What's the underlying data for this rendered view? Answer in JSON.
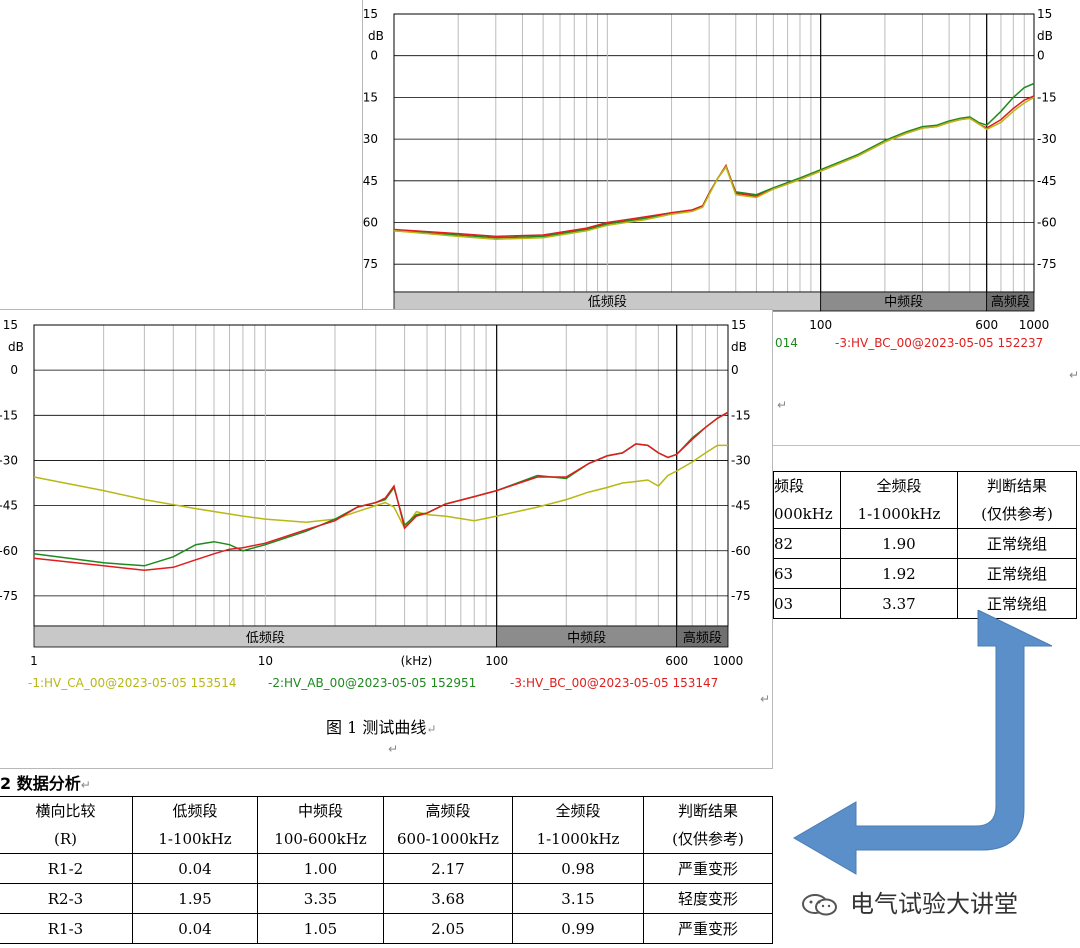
{
  "colors": {
    "yellow": "#b8b814",
    "green": "#1e8a1e",
    "red": "#e01e1e",
    "grid": "#bcbcbc",
    "band_low": "#c8c8c8",
    "band_mid": "#8c8c8c",
    "band_high": "#707070",
    "arrow": "#5b8fc9"
  },
  "back_chart": {
    "y_ticks": [
      "15",
      "0",
      "-15",
      "-30",
      "-45",
      "-60",
      "-75"
    ],
    "y_unit": "dB",
    "bands": [
      "低频段",
      "中频段",
      "高频段"
    ],
    "x_ticks": [
      "100",
      "600",
      "1000"
    ],
    "legend_partial": "014",
    "legend_series3": "-3:HV_BC_00@2023-05-05 152237"
  },
  "front_chart": {
    "y_ticks": [
      "15",
      "0",
      "-15",
      "-30",
      "-45",
      "-60",
      "-75"
    ],
    "y_unit": "dB",
    "bands": [
      "低频段",
      "中频段",
      "高频段"
    ],
    "x_ticks": [
      "1",
      "10",
      "(kHz)",
      "100",
      "600",
      "1000"
    ],
    "legend": [
      "-1:HV_CA_00@2023-05-05 153514",
      "-2:HV_AB_00@2023-05-05 152951",
      "-3:HV_BC_00@2023-05-05 153147"
    ],
    "caption": "图 1   测试曲线"
  },
  "chart_data": [
    {
      "type": "line",
      "x_scale": "log",
      "xlim": [
        1,
        1000
      ],
      "ylim": [
        -85,
        15
      ],
      "yticks": [
        15,
        0,
        -15,
        -30,
        -45,
        -60,
        -75
      ],
      "ylabel": "dB",
      "bands": [
        {
          "label": "低频段",
          "from": 1,
          "to": 100
        },
        {
          "label": "中频段",
          "from": 100,
          "to": 600
        },
        {
          "label": "高频段",
          "from": 600,
          "to": 1000
        }
      ],
      "series": [
        {
          "name": "-1:HV_CA_00@2023-05-05 153514",
          "color": "#b8b814",
          "x": [
            1,
            2,
            3,
            5,
            8,
            10,
            15,
            20,
            25,
            28,
            30,
            33,
            36,
            40,
            50,
            60,
            80,
            100,
            150,
            200,
            250,
            300,
            350,
            400,
            450,
            500,
            550,
            600,
            700,
            800,
            900,
            1000
          ],
          "y": [
            -63,
            -65,
            -66,
            -65.5,
            -63,
            -61,
            -59,
            -57,
            -56,
            -54.5,
            -50,
            -44,
            -40,
            -50,
            -51,
            -48,
            -44.5,
            -41.5,
            -36,
            -31,
            -28,
            -26,
            -25.5,
            -24,
            -23,
            -22.5,
            -24.5,
            -26.5,
            -24,
            -20,
            -17,
            -15
          ]
        },
        {
          "name": "-2:HV_AB_00@2023-05-05 152951",
          "color": "#1e8a1e",
          "x": [
            1,
            2,
            3,
            5,
            8,
            10,
            15,
            20,
            25,
            28,
            30,
            33,
            36,
            40,
            50,
            60,
            80,
            100,
            150,
            200,
            250,
            300,
            350,
            400,
            450,
            500,
            550,
            600,
            700,
            800,
            900,
            1000
          ],
          "y": [
            -63,
            -64.5,
            -65.5,
            -65,
            -62.5,
            -60.5,
            -58.5,
            -56.5,
            -55.5,
            -54,
            -49.5,
            -44,
            -40,
            -49,
            -50,
            -47.5,
            -44,
            -41,
            -35.5,
            -30.5,
            -27.5,
            -25.5,
            -25,
            -23.5,
            -22.5,
            -22,
            -24,
            -25,
            -20,
            -15,
            -11.5,
            -10
          ]
        },
        {
          "name": "-3:HV_BC_00@2023-05-05 152237",
          "color": "#e01e1e",
          "x": [
            1,
            2,
            3,
            5,
            8,
            10,
            15,
            20,
            25,
            28,
            30,
            33,
            36,
            40,
            50,
            60,
            80,
            100,
            150,
            200,
            250,
            300,
            350,
            400,
            450,
            500,
            550,
            600,
            700,
            800,
            900,
            1000
          ],
          "y": [
            -62.5,
            -64,
            -65,
            -64.5,
            -62,
            -60,
            -58,
            -56.5,
            -55.5,
            -54,
            -49.5,
            -44,
            -39.5,
            -49.5,
            -50.5,
            -48,
            -44.5,
            -41.5,
            -36,
            -31,
            -28,
            -26,
            -25.5,
            -24,
            -23,
            -22.5,
            -24.5,
            -26,
            -23,
            -19,
            -16,
            -14.5
          ]
        }
      ]
    },
    {
      "type": "line",
      "x_scale": "log",
      "xlim": [
        1,
        1000
      ],
      "ylim": [
        -85,
        15
      ],
      "yticks": [
        15,
        0,
        -15,
        -30,
        -45,
        -60,
        -75
      ],
      "ylabel": "dB",
      "xlabel": "(kHz)",
      "bands": [
        {
          "label": "低频段",
          "from": 1,
          "to": 100
        },
        {
          "label": "中频段",
          "from": 100,
          "to": 600
        },
        {
          "label": "高频段",
          "from": 600,
          "to": 1000
        }
      ],
      "series": [
        {
          "name": "-1:HV_CA_00@2023-05-05 153514",
          "color": "#b8b814",
          "x": [
            1,
            2,
            3,
            5,
            8,
            10,
            15,
            20,
            25,
            30,
            33,
            36,
            40,
            45,
            50,
            60,
            80,
            100,
            150,
            200,
            250,
            300,
            350,
            400,
            450,
            500,
            550,
            600,
            700,
            800,
            900,
            1000
          ],
          "y": [
            -35.5,
            -40,
            -43,
            -46,
            -48.5,
            -49.5,
            -50.5,
            -49.5,
            -47,
            -45,
            -44,
            -45.5,
            -52.5,
            -47,
            -48,
            -48.5,
            -50,
            -48.5,
            -45.5,
            -43,
            -40.5,
            -39,
            -37.5,
            -37,
            -36.5,
            -38.5,
            -35,
            -33.5,
            -30.5,
            -27.5,
            -25,
            -25
          ]
        },
        {
          "name": "-2:HV_AB_00@2023-05-05 152951",
          "color": "#1e8a1e",
          "x": [
            1,
            2,
            3,
            4,
            5,
            6,
            7,
            8,
            10,
            15,
            20,
            25,
            30,
            33,
            36,
            40,
            45,
            50,
            60,
            80,
            100,
            150,
            200,
            250,
            300,
            350,
            400,
            450,
            500,
            550,
            600,
            700,
            800,
            900,
            1000
          ],
          "y": [
            -61,
            -64,
            -65,
            -62,
            -58,
            -57,
            -58,
            -60,
            -58,
            -53.5,
            -49.5,
            -45.5,
            -44,
            -43,
            -39,
            -51.5,
            -48,
            -47.5,
            -44.5,
            -42,
            -40,
            -35,
            -36,
            -31,
            -28.5,
            -27.5,
            -24.5,
            -25,
            -27.5,
            -29,
            -28,
            -22.5,
            -19,
            -16,
            -14
          ]
        },
        {
          "name": "-3:HV_BC_00@2023-05-05 153147",
          "color": "#e01e1e",
          "x": [
            1,
            2,
            3,
            4,
            5,
            6,
            7,
            8,
            10,
            15,
            20,
            25,
            30,
            33,
            36,
            40,
            45,
            50,
            60,
            80,
            100,
            150,
            200,
            250,
            300,
            350,
            400,
            450,
            500,
            550,
            600,
            700,
            800,
            900,
            1000
          ],
          "y": [
            -62.5,
            -65,
            -66.5,
            -65.5,
            -63,
            -61,
            -59.5,
            -59,
            -57.5,
            -53,
            -50,
            -45.5,
            -44,
            -42.5,
            -38.5,
            -52.5,
            -48.5,
            -47.5,
            -44.5,
            -42,
            -40,
            -35.5,
            -35.5,
            -31,
            -28.5,
            -27.5,
            -24.5,
            -25,
            -27.5,
            -29,
            -28,
            -23,
            -19,
            -16,
            -14
          ]
        }
      ]
    }
  ],
  "table_back": {
    "header_col1": [
      "频段",
      "000kHz"
    ],
    "header_col2": [
      "全频段",
      "1-1000kHz"
    ],
    "header_col3": [
      "判断结果",
      "(仅供参考)"
    ],
    "rows": [
      [
        "82",
        "1.90",
        "正常绕组"
      ],
      [
        "63",
        "1.92",
        "正常绕组"
      ],
      [
        "03",
        "3.37",
        "正常绕组"
      ]
    ]
  },
  "section_title": "2  数据分析",
  "table_front": {
    "headers": [
      [
        "横向比较",
        "(R)"
      ],
      [
        "低频段",
        "1-100kHz"
      ],
      [
        "中频段",
        "100-600kHz"
      ],
      [
        "高频段",
        "600-1000kHz"
      ],
      [
        "全频段",
        "1-1000kHz"
      ],
      [
        "判断结果",
        "(仅供参考)"
      ]
    ],
    "rows": [
      [
        "R1-2",
        "0.04",
        "1.00",
        "2.17",
        "0.98",
        "严重变形"
      ],
      [
        "R2-3",
        "1.95",
        "3.35",
        "3.68",
        "3.15",
        "轻度变形"
      ],
      [
        "R1-3",
        "0.04",
        "1.05",
        "2.05",
        "0.99",
        "严重变形"
      ]
    ]
  },
  "watermark": "电气试验大讲堂"
}
